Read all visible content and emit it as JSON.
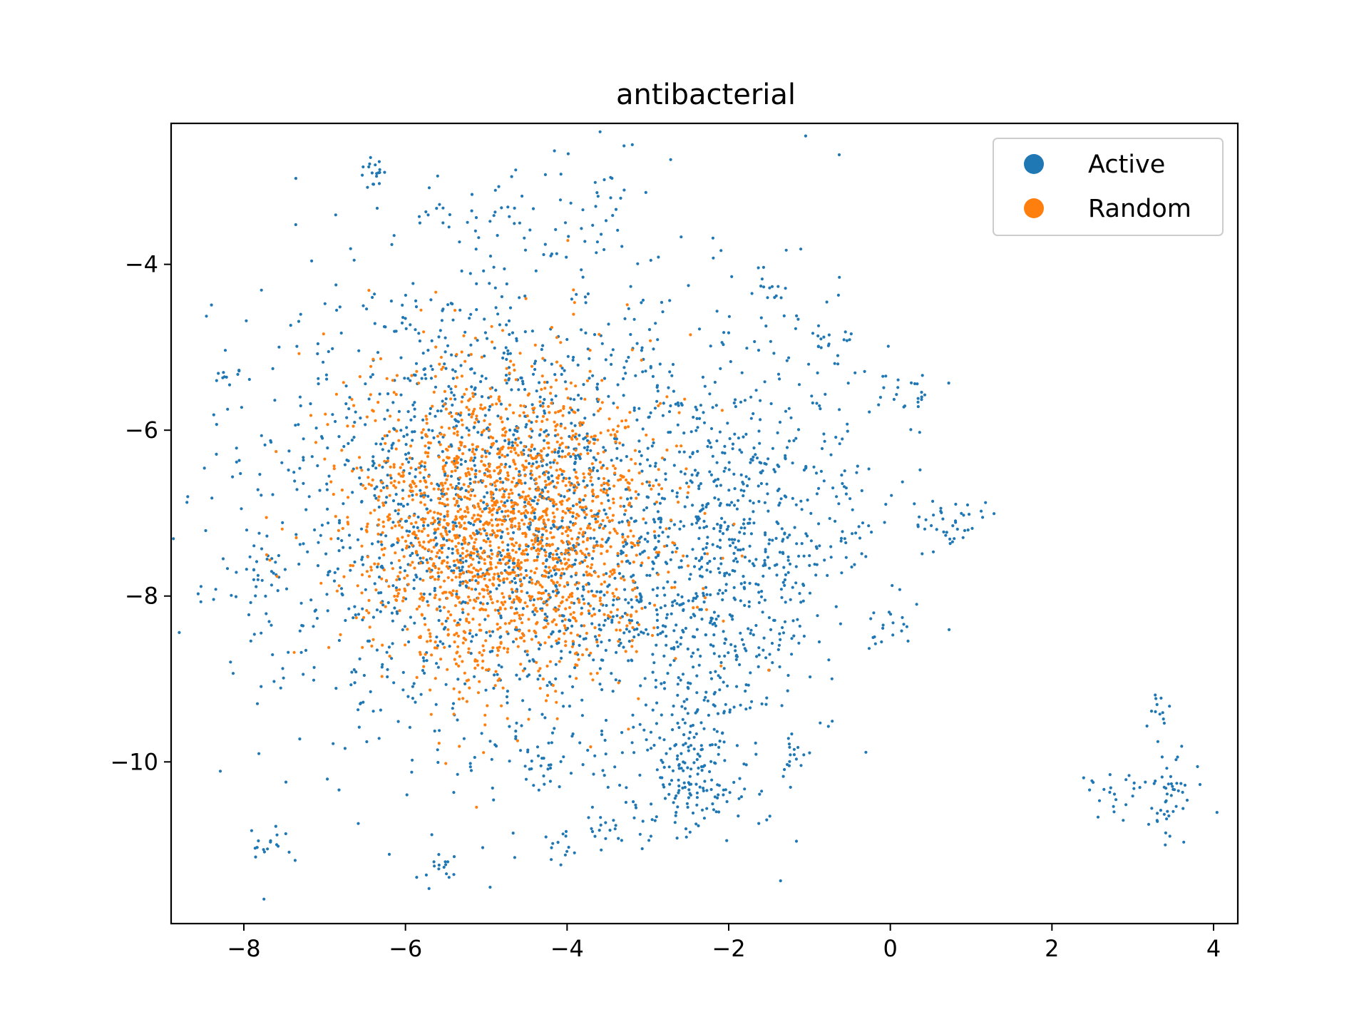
{
  "chart_data": {
    "type": "scatter",
    "title": "antibacterial",
    "xlabel": "",
    "ylabel": "",
    "xlim": [
      -8.9,
      4.3
    ],
    "ylim": [
      -11.95,
      -2.3
    ],
    "xticks": [
      -8,
      -6,
      -4,
      -2,
      0,
      2,
      4
    ],
    "yticks": [
      -4,
      -6,
      -8,
      -10
    ],
    "xtick_labels": [
      "−8",
      "−6",
      "−4",
      "−2",
      "0",
      "2",
      "4"
    ],
    "ytick_labels": [
      "−4",
      "−6",
      "−8",
      "−10"
    ],
    "grid": false,
    "legend_position": "top-right",
    "series": [
      {
        "name": "Active",
        "color": "#1f77b4",
        "clusters": [
          {
            "cx": -4.6,
            "cy": -7.0,
            "sx": 1.6,
            "sy": 1.55,
            "n": 2000
          },
          {
            "cx": -2.4,
            "cy": -8.6,
            "sx": 0.7,
            "sy": 0.9,
            "n": 300
          },
          {
            "cx": -1.6,
            "cy": -6.9,
            "sx": 0.6,
            "sy": 0.8,
            "n": 260
          },
          {
            "cx": -2.5,
            "cy": -10.3,
            "sx": 0.35,
            "sy": 0.3,
            "n": 110
          },
          {
            "cx": -6.4,
            "cy": -2.9,
            "sx": 0.08,
            "sy": 0.12,
            "n": 18
          },
          {
            "cx": -5.0,
            "cy": -3.3,
            "sx": 0.4,
            "sy": 0.2,
            "n": 30
          },
          {
            "cx": -3.6,
            "cy": -3.2,
            "sx": 0.3,
            "sy": 0.25,
            "n": 30
          },
          {
            "cx": -1.5,
            "cy": -4.2,
            "sx": 0.12,
            "sy": 0.2,
            "n": 15
          },
          {
            "cx": -0.7,
            "cy": -4.9,
            "sx": 0.15,
            "sy": 0.2,
            "n": 20
          },
          {
            "cx": 0.1,
            "cy": -5.5,
            "sx": 0.2,
            "sy": 0.2,
            "n": 25
          },
          {
            "cx": 0.7,
            "cy": -7.1,
            "sx": 0.25,
            "sy": 0.2,
            "n": 40
          },
          {
            "cx": 0.0,
            "cy": -8.35,
            "sx": 0.15,
            "sy": 0.15,
            "n": 20
          },
          {
            "cx": -0.6,
            "cy": -7.4,
            "sx": 0.25,
            "sy": 0.2,
            "n": 20
          },
          {
            "cx": -0.55,
            "cy": -6.7,
            "sx": 0.2,
            "sy": 0.2,
            "n": 15
          },
          {
            "cx": -8.2,
            "cy": -5.35,
            "sx": 0.1,
            "sy": 0.1,
            "n": 10
          },
          {
            "cx": -7.75,
            "cy": -11.0,
            "sx": 0.15,
            "sy": 0.1,
            "n": 18
          },
          {
            "cx": -5.55,
            "cy": -11.3,
            "sx": 0.08,
            "sy": 0.15,
            "n": 15
          },
          {
            "cx": -4.35,
            "cy": -10.1,
            "sx": 0.12,
            "sy": 0.12,
            "n": 15
          },
          {
            "cx": -4.05,
            "cy": -11.0,
            "sx": 0.1,
            "sy": 0.15,
            "n": 12
          },
          {
            "cx": -3.55,
            "cy": -10.8,
            "sx": 0.2,
            "sy": 0.12,
            "n": 18
          },
          {
            "cx": -1.2,
            "cy": -9.9,
            "sx": 0.15,
            "sy": 0.1,
            "n": 15
          },
          {
            "cx": -7.8,
            "cy": -7.75,
            "sx": 0.2,
            "sy": 0.15,
            "n": 20
          },
          {
            "cx": 3.45,
            "cy": -10.45,
            "sx": 0.15,
            "sy": 0.25,
            "n": 45
          },
          {
            "cx": 2.85,
            "cy": -10.4,
            "sx": 0.3,
            "sy": 0.15,
            "n": 25
          },
          {
            "cx": 3.3,
            "cy": -9.45,
            "sx": 0.1,
            "sy": 0.15,
            "n": 12
          }
        ]
      },
      {
        "name": "Random",
        "color": "#ff7f0e",
        "clusters": [
          {
            "cx": -4.75,
            "cy": -7.15,
            "sx": 0.95,
            "sy": 0.95,
            "n": 1900
          }
        ]
      }
    ]
  }
}
